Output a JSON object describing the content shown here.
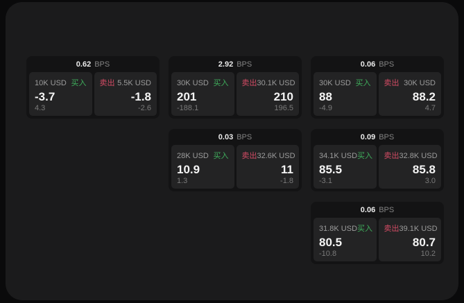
{
  "labels": {
    "bps": "BPS",
    "buy": "买入",
    "sell": "卖出"
  },
  "colors": {
    "buy_green": "#3fae5c",
    "sell_red": "#d24b64",
    "page_bg": "#0a0a0b",
    "panel_bg": "#1b1b1c",
    "card_bg": "#131314",
    "tile_bg": "#232324"
  },
  "cards": [
    {
      "bps": "0.62",
      "buy": {
        "amount": "10K USD",
        "value": "-3.7",
        "secondary": "4.3"
      },
      "sell": {
        "amount": "5.5K USD",
        "value": "-1.8",
        "secondary": "-2.6"
      }
    },
    {
      "bps": "2.92",
      "buy": {
        "amount": "30K USD",
        "value": "201",
        "secondary": "-188.1"
      },
      "sell": {
        "amount": "30.1K USD",
        "value": "210",
        "secondary": "196.5"
      }
    },
    {
      "bps": "0.06",
      "buy": {
        "amount": "30K USD",
        "value": "88",
        "secondary": "-4.9"
      },
      "sell": {
        "amount": "30K USD",
        "value": "88.2",
        "secondary": "4.7"
      }
    },
    {
      "bps": "0.03",
      "buy": {
        "amount": "28K USD",
        "value": "10.9",
        "secondary": "1.3"
      },
      "sell": {
        "amount": "32.6K USD",
        "value": "11",
        "secondary": "-1.8"
      }
    },
    {
      "bps": "0.09",
      "buy": {
        "amount": "34.1K USD",
        "value": "85.5",
        "secondary": "-3.1"
      },
      "sell": {
        "amount": "32.8K USD",
        "value": "85.8",
        "secondary": "3.0"
      }
    },
    {
      "bps": "0.06",
      "buy": {
        "amount": "31.8K USD",
        "value": "80.5",
        "secondary": "-10.8"
      },
      "sell": {
        "amount": "39.1K USD",
        "value": "80.7",
        "secondary": "10.2"
      }
    }
  ]
}
